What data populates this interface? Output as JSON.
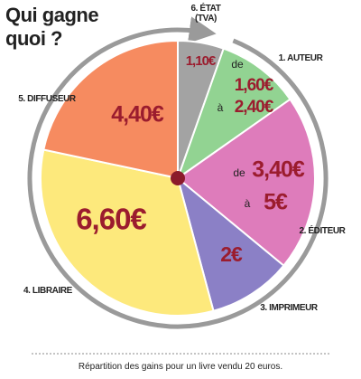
{
  "chart_data": {
    "type": "pie",
    "title_lines": [
      "Qui gagne",
      "quoi ?"
    ],
    "categories": [
      "6. ÉTAT (TVA)",
      "1. AUTEUR",
      "2. ÉDITEUR",
      "3. IMPRIMEUR",
      "4. LIBRAIRE",
      "5. DIFFUSEUR"
    ],
    "values": [
      1.1,
      1.6,
      3.4,
      2,
      6.6,
      4.4
    ],
    "values_max": [
      null,
      2.4,
      5,
      null,
      null,
      null
    ],
    "value_labels": [
      "1,10€",
      "1,60€",
      "3,40€",
      "2€",
      "6,60€",
      "4,40€"
    ],
    "value_max_labels": [
      null,
      "2,40€",
      "5€",
      null,
      null,
      null
    ],
    "range_from": "de",
    "range_to": "à",
    "colors": [
      "#a3a3a3",
      "#92d392",
      "#de7cbb",
      "#8b80c6",
      "#fde97c",
      "#f68b60"
    ],
    "caption": "Répartition des gains pour un livre vendu 20 euros."
  }
}
